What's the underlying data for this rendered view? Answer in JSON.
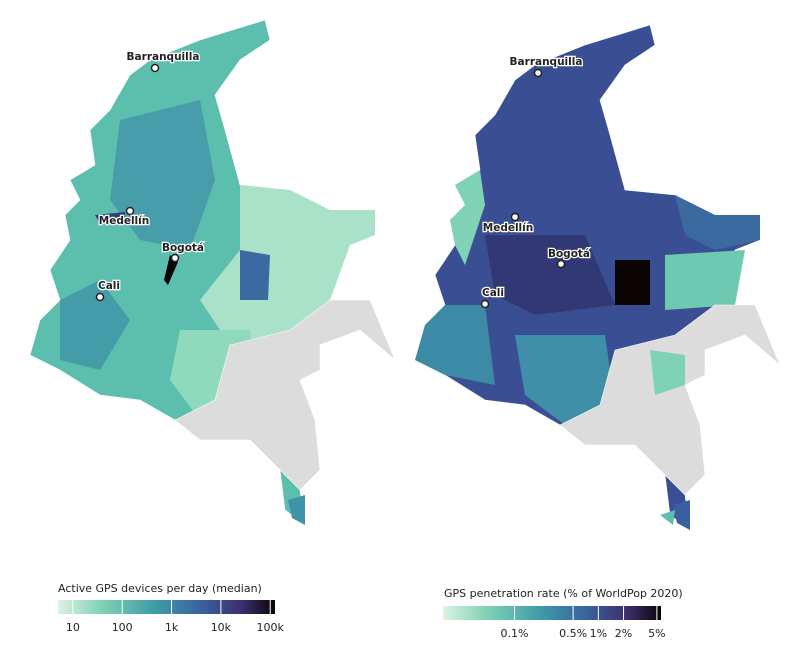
{
  "maps": [
    {
      "cities": [
        "Barranquilla",
        "Medellín",
        "Bogotá",
        "Cali"
      ],
      "legend": {
        "title": "Active GPS devices per day (median)",
        "scale": "log",
        "range": [
          5,
          125000
        ],
        "ticks": [
          10,
          100,
          {
            "value": 1000,
            "label": "1k"
          },
          {
            "value": 10000,
            "label": "10k"
          },
          {
            "value": 100000,
            "label": "100k"
          }
        ]
      }
    },
    {
      "cities": [
        "Barranquilla",
        "Medellín",
        "Bogotá",
        "Cali"
      ],
      "legend": {
        "title": "GPS penetration rate (% of WorldPop 2020)",
        "scale": "log",
        "range": [
          0.014,
          5.6
        ],
        "ticks": [
          {
            "value": 0.1,
            "label": "0.1%"
          },
          {
            "value": 0.5,
            "label": "0.5%"
          },
          {
            "value": 1,
            "label": "1%"
          },
          {
            "value": 2,
            "label": "2%"
          },
          {
            "value": 5,
            "label": "5%"
          }
        ]
      }
    }
  ]
}
